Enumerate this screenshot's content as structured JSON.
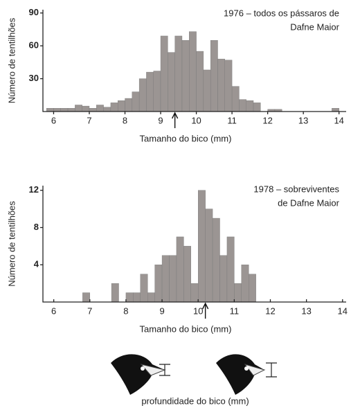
{
  "chart_data": [
    {
      "type": "histogram",
      "annotation": [
        "1976 – todos os pássaros de",
        "Dafne Maior"
      ],
      "xlabel": "Tamanho do bico (mm)",
      "ylabel": "Número de tentilhões",
      "bins": [
        5.8,
        6,
        6.2,
        6.4,
        6.6,
        6.8,
        7,
        7.2,
        7.4,
        7.6,
        7.8,
        8,
        8.2,
        8.4,
        8.6,
        8.8,
        9,
        9.2,
        9.4,
        9.6,
        9.8,
        10,
        10.2,
        10.4,
        10.6,
        10.8,
        11,
        11.2,
        11.4,
        11.6,
        11.8,
        12,
        12.2,
        12.4,
        12.6,
        12.8,
        13,
        13.2,
        13.4,
        13.6,
        13.8,
        14
      ],
      "counts": [
        3,
        3,
        3,
        3,
        6,
        5,
        3,
        6,
        4,
        8,
        10,
        12,
        18,
        30,
        36,
        37,
        69,
        54,
        69,
        65,
        73,
        55,
        38,
        65,
        48,
        47,
        23,
        11,
        10,
        8,
        0,
        2,
        2,
        0,
        0,
        0,
        0,
        0,
        0,
        0,
        3
      ],
      "color": "#9b9593",
      "xlim": [
        5.7,
        14.2
      ],
      "ylim": [
        0,
        93
      ],
      "xticks": [
        6,
        7,
        8,
        9,
        10,
        11,
        12,
        13,
        14
      ],
      "yticks": [
        30,
        60,
        90
      ]
    },
    {
      "type": "histogram",
      "annotation": [
        "1978 – sobreviventes",
        "de Dafne Maior"
      ],
      "xlabel": "Tamanho do bico (mm)",
      "ylabel": "Número de tentilhões",
      "bins": [
        6.8,
        7,
        7.2,
        7.4,
        7.6,
        7.8,
        8,
        8.2,
        8.4,
        8.6,
        8.8,
        9,
        9.2,
        9.4,
        9.6,
        9.8,
        10,
        10.2,
        10.4,
        10.6,
        10.8,
        11,
        11.2,
        11.4,
        11.6
      ],
      "counts": [
        1,
        0,
        0,
        0,
        2,
        0,
        1,
        1,
        3,
        1,
        4,
        5,
        5,
        7,
        6,
        2,
        12,
        10,
        9,
        5,
        7,
        2,
        4,
        3
      ],
      "color": "#9b9593",
      "xlim": [
        5.7,
        14.1
      ],
      "ylim": [
        0,
        12.5
      ],
      "xticks": [
        6,
        7,
        8,
        9,
        10,
        11,
        12,
        13,
        14
      ],
      "yticks": [
        4,
        8,
        12
      ]
    }
  ],
  "caption": "profundidade do bico (mm)"
}
